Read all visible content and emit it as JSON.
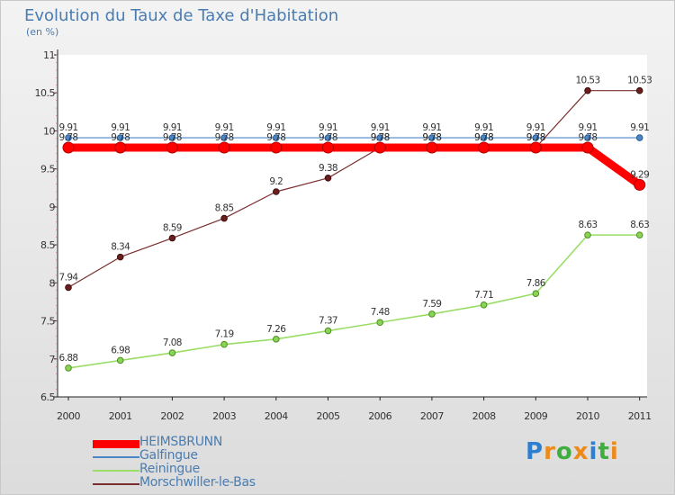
{
  "chart_data": {
    "type": "line",
    "title": "Evolution du Taux de Taxe d'Habitation",
    "ylabel": "(en %)",
    "xlabel": "",
    "ylim": [
      6.5,
      11
    ],
    "yticks": [
      "6.5",
      "7",
      "7.5",
      "8",
      "8.5",
      "9",
      "9.5",
      "10",
      "10.5",
      "11"
    ],
    "categories": [
      "2000",
      "2001",
      "2002",
      "2003",
      "2004",
      "2005",
      "2006",
      "2007",
      "2008",
      "2009",
      "2010",
      "2011"
    ],
    "series": [
      {
        "name": "HEIMSBRUNN",
        "color": "#ff0000",
        "values": [
          9.78,
          9.78,
          9.78,
          9.78,
          9.78,
          9.78,
          9.78,
          9.78,
          9.78,
          9.78,
          9.78,
          9.29
        ],
        "labels": [
          "9.78",
          "9.78",
          "9.78",
          "9.78",
          "9.78",
          "9.78",
          "9.78",
          "9.78",
          "9.78",
          "9.78",
          "9.78",
          "9.29"
        ]
      },
      {
        "name": "Galfingue",
        "color": "#4a86c8",
        "values": [
          9.91,
          9.91,
          9.91,
          9.91,
          9.91,
          9.91,
          9.91,
          9.91,
          9.91,
          9.91,
          9.91,
          9.91
        ],
        "labels": [
          "9.91",
          "9.91",
          "9.91",
          "9.91",
          "9.91",
          "9.91",
          "9.91",
          "9.91",
          "9.91",
          "9.91",
          "9.91",
          "9.91"
        ]
      },
      {
        "name": "Reiningue",
        "color": "#99dd66",
        "values": [
          6.88,
          6.98,
          7.08,
          7.19,
          7.26,
          7.37,
          7.48,
          7.59,
          7.71,
          7.86,
          8.63,
          8.63
        ],
        "labels": [
          "6.88",
          "6.98",
          "7.08",
          "7.19",
          "7.26",
          "7.37",
          "7.48",
          "7.59",
          "7.71",
          "7.86",
          "8.63",
          "8.63"
        ]
      },
      {
        "name": "Morschwiller-le-Bas",
        "color": "#7a2e2e",
        "values": [
          7.94,
          8.34,
          8.59,
          8.85,
          9.2,
          9.38,
          9.78,
          9.78,
          9.78,
          9.78,
          10.53,
          10.53
        ],
        "labels": [
          "7.94",
          "8.34",
          "8.59",
          "8.85",
          "9.2",
          "9.38",
          "9.78",
          "9.78",
          "9.78",
          "9.78",
          "10.53",
          "10.53"
        ]
      }
    ]
  },
  "logo": {
    "text": "Proxiti"
  }
}
